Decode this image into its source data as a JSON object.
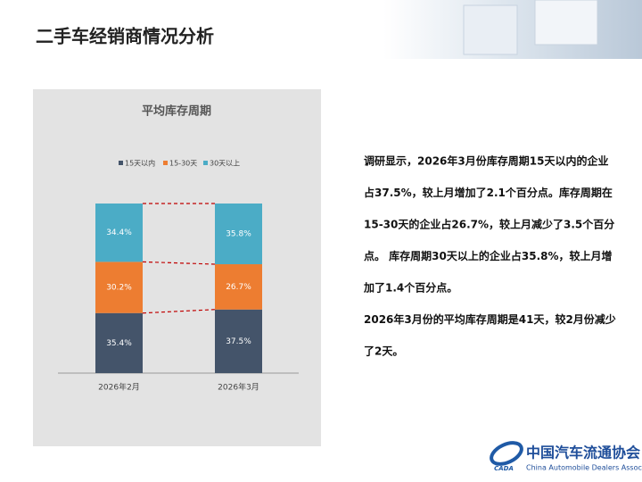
{
  "header": {
    "title": "二手车经销商情况分析"
  },
  "chart_data": {
    "type": "stacked_bar",
    "title": "平均库存周期",
    "categories": [
      "2026年2月",
      "2026年3月"
    ],
    "series": [
      {
        "name": "15天以内",
        "color": "#44546a",
        "values": [
          35.4,
          37.5
        ],
        "value_labels": [
          "35.4%",
          "37.5%"
        ]
      },
      {
        "name": "15-30天",
        "color": "#ed7d31",
        "values": [
          30.2,
          26.7
        ],
        "value_labels": [
          "30.2%",
          "26.7%"
        ]
      },
      {
        "name": "30天以上",
        "color": "#4bacc6",
        "values": [
          34.4,
          35.8
        ],
        "value_labels": [
          "34.4%",
          "35.8%"
        ]
      }
    ],
    "connector_color": "#c00000"
  },
  "text": {
    "paragraphs": [
      [
        "调研显示，2026年3月份库存周期15天以内的企业",
        "占37.5%，较上月增加了2.1个百分点。库存周期在",
        "15-30天的企业占26.7%，较上月减少了3.5个百分",
        "点。 库存周期30天以上的企业占35.8%，较上月增",
        "加了1.4个百分点。"
      ],
      [
        "2026年3月份的平均库存周期是41天，较2月份减少",
        "了2天。"
      ]
    ]
  },
  "logo": {
    "name": "中国汽车流通协会",
    "english": "China Automobile Dealers Association",
    "mark": "CADA"
  }
}
